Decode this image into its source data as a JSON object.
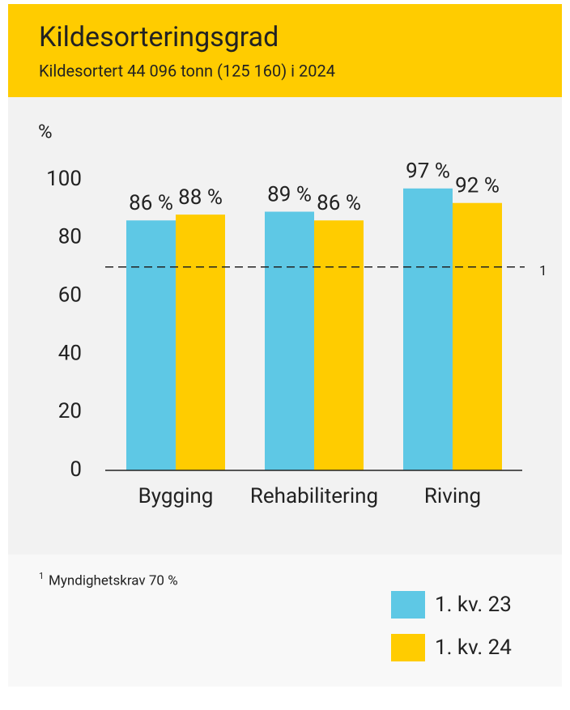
{
  "chart_data": {
    "type": "bar",
    "title": "Kildesorteringsgrad",
    "subtitle": "Kildesortert 44 096 tonn (125 160) i 2024",
    "y_label": "%",
    "categories": [
      "Bygging",
      "Rehabilitering",
      "Riving"
    ],
    "series": [
      {
        "name": "1. kv. 23",
        "color": "#5ec8e5",
        "values": [
          86,
          89,
          97
        ],
        "value_labels": [
          "86 %",
          "89 %",
          "97 %"
        ]
      },
      {
        "name": "1. kv. 24",
        "color": "#ffcc00",
        "values": [
          88,
          86,
          92
        ],
        "value_labels": [
          "88 %",
          "86 %",
          "92 %"
        ]
      }
    ],
    "ylim": [
      0,
      100
    ],
    "yticks": [
      0,
      20,
      40,
      60,
      80,
      100
    ],
    "grid": false,
    "reference_line": {
      "value": 70,
      "label": "1"
    },
    "footnote": {
      "marker": "1",
      "text": "Myndighetskrav 70 %"
    }
  }
}
